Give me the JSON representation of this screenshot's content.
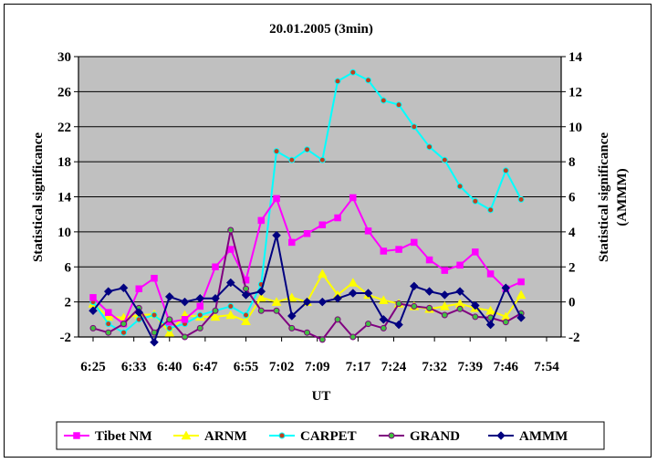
{
  "chart_data": {
    "type": "line",
    "title": "20.01.2005 (3min)",
    "xlabel": "UT",
    "ylabel_left": "Statistical significance",
    "ylabel_right": "Statistical significance (AMMM)",
    "x_ticks": [
      "6:25",
      "6:33",
      "6:40",
      "6:47",
      "6:55",
      "7:02",
      "7:09",
      "7:17",
      "7:24",
      "7:32",
      "7:39",
      "7:46",
      "7:54"
    ],
    "y_left_ticks": [
      "-2",
      "2",
      "6",
      "10",
      "14",
      "18",
      "22",
      "26",
      "30"
    ],
    "y_right_ticks": [
      "-2",
      "0",
      "2",
      "4",
      "6",
      "8",
      "10",
      "12",
      "14"
    ],
    "y_left_range": [
      -2,
      30
    ],
    "y_right_range": [
      -2,
      14
    ],
    "grid": "horizontal",
    "legend_position": "bottom",
    "plot_background": "#c0c0c0",
    "series": [
      {
        "name": "Tibet NM",
        "color": "#ff00ff",
        "marker": "square",
        "axis": "left",
        "x": [
          "6:25",
          "6:28",
          "6:31",
          "6:34",
          "6:37",
          "6:40",
          "6:43",
          "6:46",
          "6:49",
          "6:52",
          "6:55",
          "6:58",
          "7:01",
          "7:04",
          "7:07",
          "7:10",
          "7:13",
          "7:16",
          "7:19",
          "7:22",
          "7:25",
          "7:28",
          "7:31",
          "7:34",
          "7:37",
          "7:40",
          "7:43",
          "7:46",
          "7:49"
        ],
        "values": [
          2.5,
          0.8,
          -0.5,
          3.5,
          4.7,
          -0.3,
          0.0,
          1.5,
          6.0,
          8.0,
          4.5,
          11.3,
          13.8,
          8.8,
          9.8,
          10.8,
          11.6,
          13.9,
          10.1,
          7.8,
          8.0,
          8.8,
          6.8,
          5.6,
          6.2,
          7.7,
          5.2,
          3.5,
          4.3
        ]
      },
      {
        "name": "ARNM",
        "color": "#ffff00",
        "marker": "triangle",
        "axis": "left",
        "x": [
          "6:25",
          "6:28",
          "6:31",
          "6:34",
          "6:37",
          "6:40",
          "6:43",
          "6:46",
          "6:49",
          "6:52",
          "6:55",
          "6:58",
          "7:01",
          "7:04",
          "7:07",
          "7:10",
          "7:13",
          "7:16",
          "7:19",
          "7:22",
          "7:25",
          "7:28",
          "7:31",
          "7:34",
          "7:37",
          "7:40",
          "7:43",
          "7:46",
          "7:49"
        ],
        "values": [
          1.8,
          0.3,
          0.2,
          0.5,
          0.6,
          -1.5,
          0.5,
          0.3,
          0.3,
          0.5,
          -0.2,
          2.5,
          2.0,
          2.5,
          2.0,
          5.2,
          2.8,
          4.2,
          2.8,
          2.2,
          1.8,
          1.5,
          1.2,
          1.5,
          1.8,
          1.3,
          1.0,
          0.3,
          2.8
        ]
      },
      {
        "name": "CARPET",
        "color": "#00ffff",
        "marker": "circle",
        "axis": "left",
        "x": [
          "6:25",
          "6:28",
          "6:31",
          "6:34",
          "6:37",
          "6:40",
          "6:43",
          "6:46",
          "6:49",
          "6:52",
          "6:55",
          "6:58",
          "7:01",
          "7:04",
          "7:07",
          "7:10",
          "7:13",
          "7:16",
          "7:19",
          "7:22",
          "7:25",
          "7:28",
          "7:31",
          "7:34",
          "7:37",
          "7:40",
          "7:43",
          "7:46",
          "7:49"
        ],
        "values": [
          2.0,
          -0.5,
          -1.5,
          0.0,
          0.5,
          -1.0,
          -0.5,
          0.5,
          1.0,
          1.5,
          0.5,
          4.0,
          19.2,
          18.2,
          19.4,
          18.2,
          27.2,
          28.2,
          27.3,
          25.0,
          24.5,
          22.0,
          19.7,
          18.2,
          15.2,
          13.5,
          12.5,
          17.0,
          13.7
        ]
      },
      {
        "name": "GRAND",
        "color": "#800080",
        "marker": "circle",
        "axis": "left",
        "x": [
          "6:25",
          "6:28",
          "6:31",
          "6:34",
          "6:37",
          "6:40",
          "6:43",
          "6:46",
          "6:49",
          "6:52",
          "6:55",
          "6:58",
          "7:01",
          "7:04",
          "7:07",
          "7:10",
          "7:13",
          "7:16",
          "7:19",
          "7:22",
          "7:25",
          "7:28",
          "7:31",
          "7:34",
          "7:37",
          "7:40",
          "7:43",
          "7:46",
          "7:49"
        ],
        "values": [
          -1.0,
          -1.5,
          -0.5,
          1.3,
          -1.5,
          0.0,
          -2.0,
          -1.0,
          1.0,
          10.2,
          3.5,
          1.0,
          1.0,
          -1.0,
          -1.5,
          -2.3,
          0.0,
          -2.0,
          -0.5,
          -1.0,
          1.8,
          1.5,
          1.3,
          0.5,
          1.2,
          0.3,
          0.2,
          -0.3,
          0.7
        ]
      },
      {
        "name": "AMMM",
        "color": "#000080",
        "marker": "diamond",
        "axis": "right",
        "x": [
          "6:25",
          "6:28",
          "6:31",
          "6:34",
          "6:37",
          "6:40",
          "6:43",
          "6:46",
          "6:49",
          "6:52",
          "6:55",
          "6:58",
          "7:01",
          "7:04",
          "7:07",
          "7:10",
          "7:13",
          "7:16",
          "7:19",
          "7:22",
          "7:25",
          "7:28",
          "7:31",
          "7:34",
          "7:37",
          "7:40",
          "7:43",
          "7:46",
          "7:49"
        ],
        "values": [
          -0.5,
          0.6,
          0.8,
          -0.6,
          -2.3,
          0.3,
          0.0,
          0.2,
          0.2,
          1.1,
          0.4,
          0.6,
          3.8,
          -0.8,
          0.0,
          0.0,
          0.2,
          0.5,
          0.5,
          -1.0,
          -1.3,
          0.9,
          0.6,
          0.4,
          0.6,
          -0.2,
          -1.3,
          0.8,
          -0.9
        ]
      }
    ]
  }
}
